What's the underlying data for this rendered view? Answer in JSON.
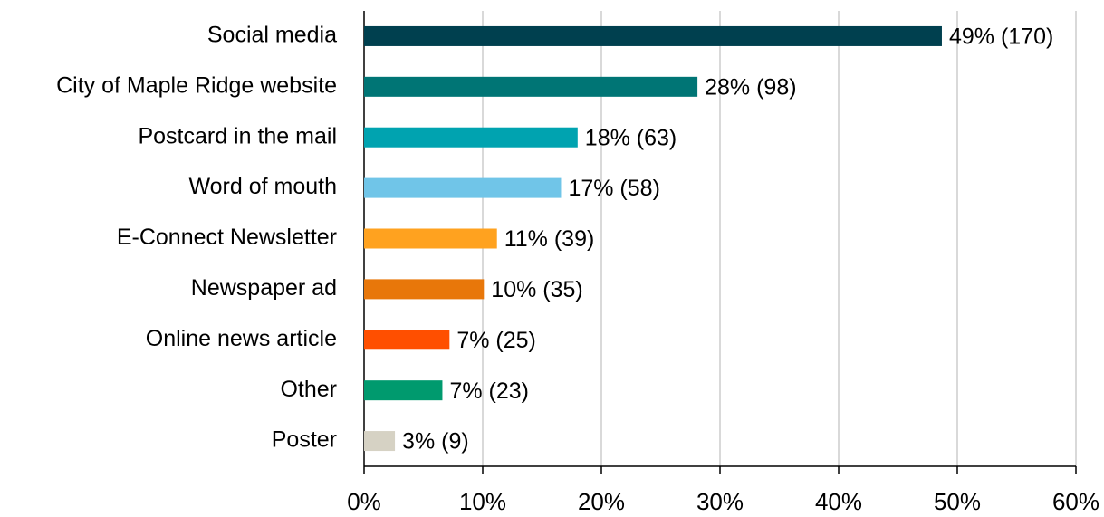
{
  "chart_data": {
    "type": "hbar",
    "categories": [
      "Social media",
      "City of Maple Ridge website",
      "Postcard in the mail",
      "Word of mouth",
      "E-Connect Newsletter",
      "Newspaper ad",
      "Online news article",
      "Other",
      "Poster"
    ],
    "values": [
      48.7,
      28.1,
      18.0,
      16.6,
      11.2,
      10.1,
      7.2,
      6.6,
      2.6
    ],
    "value_labels": [
      "49% (170)",
      "28% (98)",
      "18% (63)",
      "17% (58)",
      "11% (39)",
      "10% (35)",
      "7% (25)",
      "7% (23)",
      "3% (9)"
    ],
    "colors": [
      "#00404f",
      "#007575",
      "#00a3b0",
      "#70c5e8",
      "#ffa21f",
      "#e8770a",
      "#ff4f00",
      "#009a6e",
      "#d6d2c4"
    ],
    "xlim": [
      0,
      60
    ],
    "xticks": [
      {
        "value": 0,
        "label": "0%"
      },
      {
        "value": 10,
        "label": "10%"
      },
      {
        "value": 20,
        "label": "20%"
      },
      {
        "value": 30,
        "label": "30%"
      },
      {
        "value": 40,
        "label": "40%"
      },
      {
        "value": 50,
        "label": "50%"
      },
      {
        "value": 60,
        "label": "60%"
      }
    ],
    "grid": true
  }
}
